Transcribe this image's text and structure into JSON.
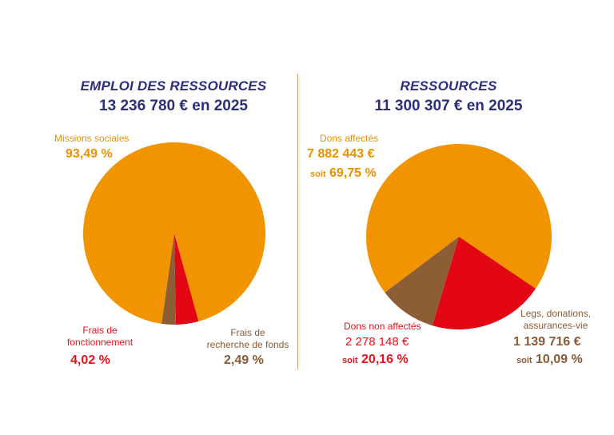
{
  "colors": {
    "orange": "#F29400",
    "red": "#E30613",
    "brown": "#8D5E36",
    "title": "#2B2F7A"
  },
  "left": {
    "title": "EMPLOI DES RESSOURCES",
    "amount": "13 236 780 € en 2025",
    "labels": {
      "missions_name": "Missions sociales",
      "missions_pct": "93,49 %",
      "fonctionnement_line1": "Frais de",
      "fonctionnement_line2": "fonctionnement",
      "fonctionnement_pct": "4,02 %",
      "recherche_line1": "Frais de",
      "recherche_line2": "recherche de fonds",
      "recherche_pct": "2,49 %"
    }
  },
  "right": {
    "title": "RESSOURCES",
    "amount": "11 300 307 € en 2025",
    "labels": {
      "dons_affectes_name": "Dons affectés",
      "dons_affectes_value": "7 882 443 €",
      "dons_affectes_soit": "soit",
      "dons_affectes_pct": "69,75 %",
      "dons_non_name": "Dons non affectés",
      "dons_non_value": "2 278 148 €",
      "dons_non_soit": "soit",
      "dons_non_pct": "20,16 %",
      "legs_line1": "Legs, donations,",
      "legs_line2": "assurances-vie",
      "legs_value": "1 139 716 €",
      "legs_soit": "soit",
      "legs_pct": "10,09 %"
    }
  },
  "chart_data": [
    {
      "type": "pie",
      "title": "EMPLOI DES RESSOURCES",
      "subtitle": "13 236 780 € en 2025",
      "categories": [
        "Missions sociales",
        "Frais de fonctionnement",
        "Frais de recherche de fonds"
      ],
      "values": [
        93.49,
        4.02,
        2.49
      ],
      "colors": [
        "#F29400",
        "#E30613",
        "#8D5E36"
      ]
    },
    {
      "type": "pie",
      "title": "RESSOURCES",
      "subtitle": "11 300 307 € en 2025",
      "categories": [
        "Dons affectés",
        "Dons non affectés",
        "Legs, donations, assurances-vie"
      ],
      "values": [
        69.75,
        20.16,
        10.09
      ],
      "amounts": [
        7882443,
        2278148,
        1139716
      ],
      "colors": [
        "#F29400",
        "#E30613",
        "#8D5E36"
      ]
    }
  ]
}
